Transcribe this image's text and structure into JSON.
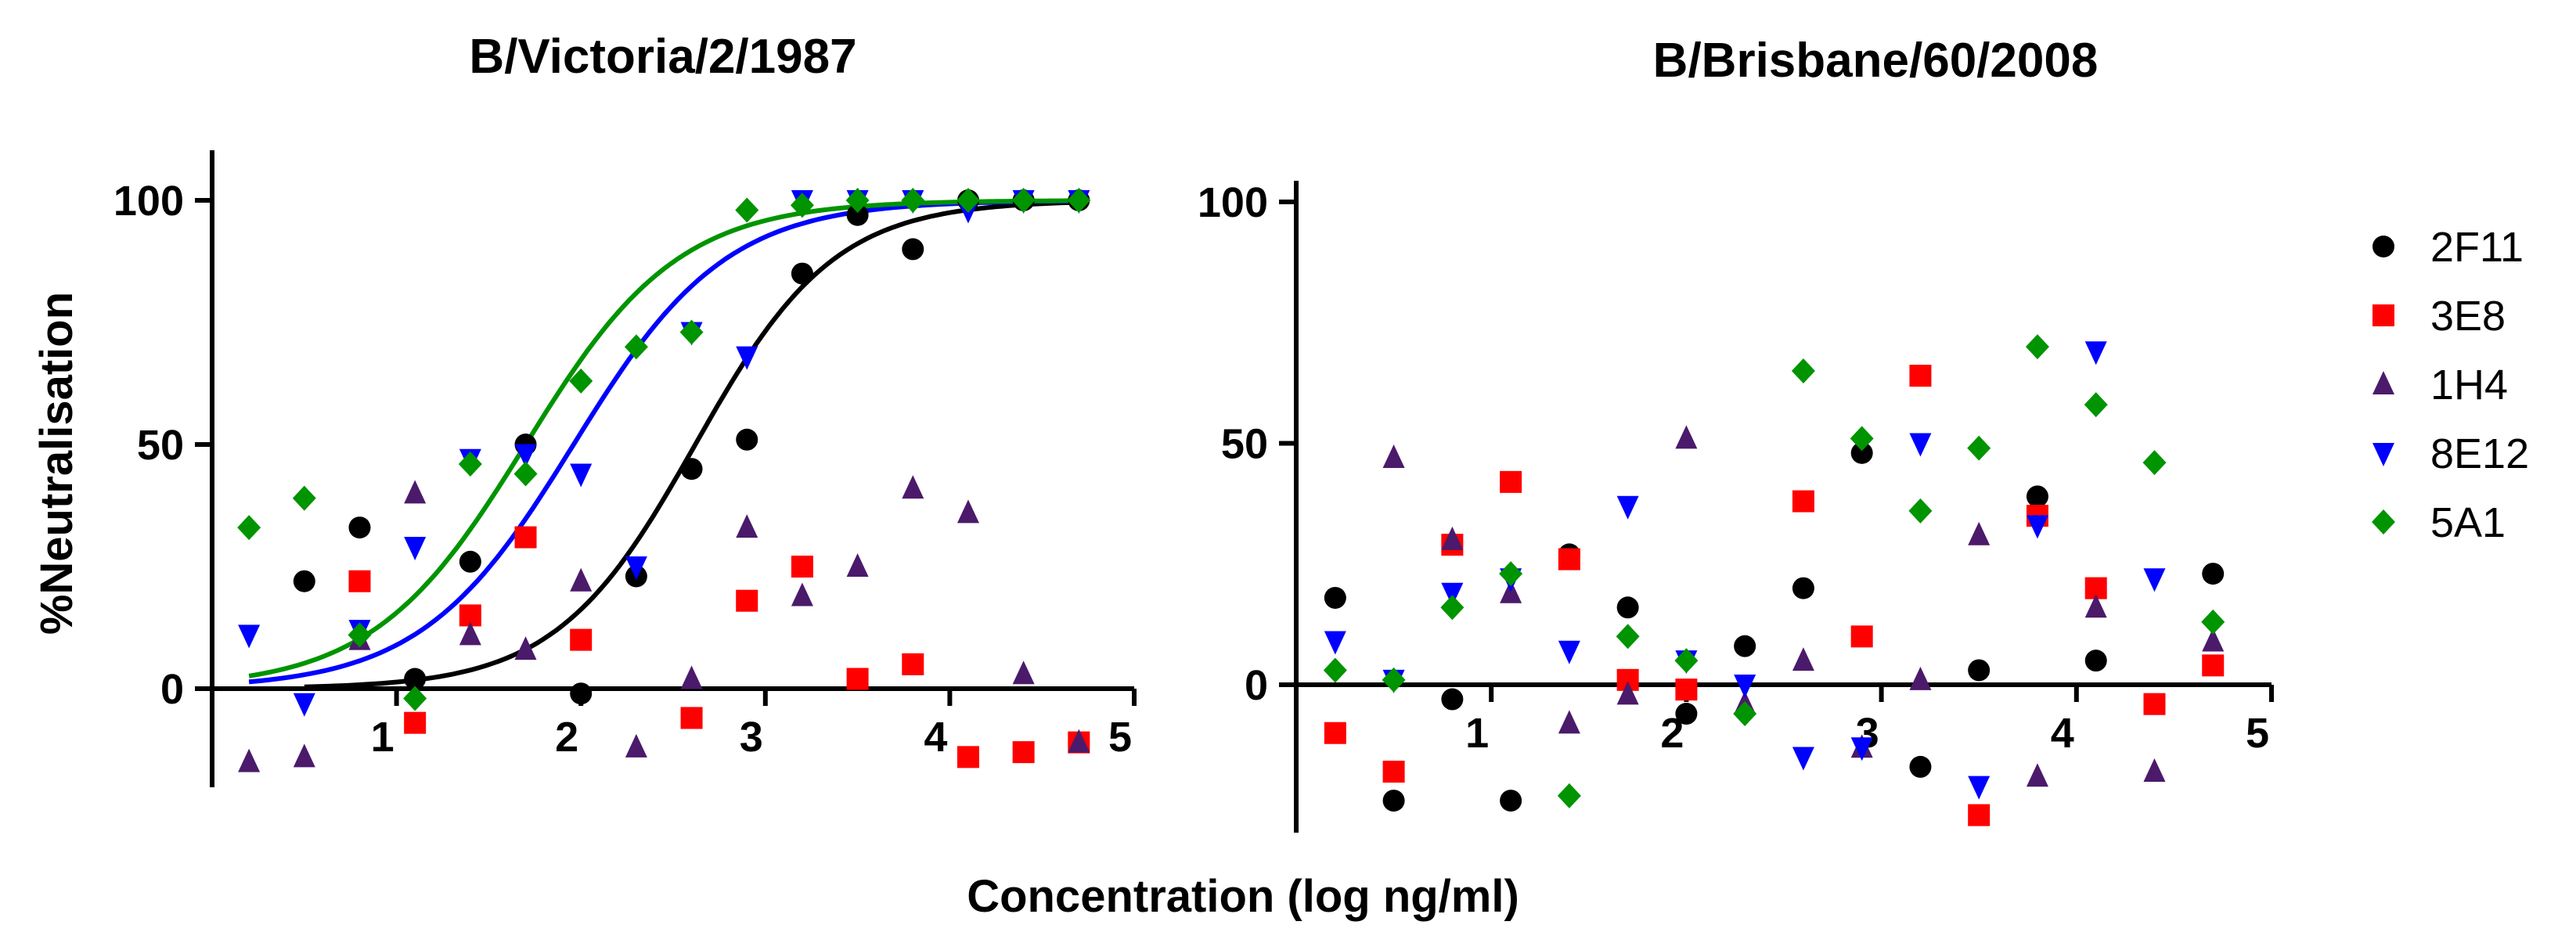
{
  "shared": {
    "xlabel": "Concentration  (log ng/ml)",
    "ylabel": "%Neutralisation"
  },
  "legend": [
    {
      "name": "2F11",
      "color": "#000000",
      "marker": "circle"
    },
    {
      "name": "3E8",
      "color": "#ff0000",
      "marker": "square"
    },
    {
      "name": "1H4",
      "color": "#4b1a6b",
      "marker": "triangle-up"
    },
    {
      "name": "8E12",
      "color": "#0000ff",
      "marker": "triangle-down"
    },
    {
      "name": "5A1",
      "color": "#009400",
      "marker": "diamond"
    }
  ],
  "chart_data": [
    {
      "type": "scatter",
      "title": "B/Victoria/2/1987",
      "xlabel": "Concentration  (log ng/ml)",
      "ylabel": "%Neutralisation",
      "xlim": [
        0,
        5
      ],
      "ylim": [
        -20,
        110
      ],
      "xticks": [
        1,
        2,
        3,
        4,
        5
      ],
      "yticks": [
        0,
        50,
        100
      ],
      "series": [
        {
          "name": "2F11",
          "x": [
            0.5,
            0.8,
            1.1,
            1.4,
            1.7,
            2.0,
            2.3,
            2.6,
            2.9,
            3.2,
            3.5,
            3.8,
            4.1,
            4.4,
            4.7
          ],
          "y": [
            22,
            33,
            2,
            26,
            50,
            -1,
            23,
            45,
            51,
            85,
            97,
            90,
            100,
            100,
            100
          ],
          "fit": {
            "top": 100,
            "bottom": 0,
            "logEC50": 2.62,
            "hill": 1.15
          }
        },
        {
          "name": "3E8",
          "x": [
            0.8,
            1.1,
            1.4,
            1.7,
            2.0,
            2.6,
            2.9,
            3.2,
            3.5,
            3.8,
            4.1,
            4.4,
            4.7
          ],
          "y": [
            22,
            -7,
            15,
            31,
            10,
            -6,
            18,
            25,
            2,
            5,
            -14,
            -13,
            -11
          ]
        },
        {
          "name": "1H4",
          "x": [
            0.2,
            0.5,
            0.8,
            1.1,
            1.4,
            1.7,
            2.0,
            2.3,
            2.6,
            2.9,
            3.2,
            3.5,
            3.8,
            4.1,
            4.4,
            4.7
          ],
          "y": [
            -15,
            -14,
            10,
            40,
            11,
            8,
            22,
            -12,
            2,
            33,
            19,
            25,
            41,
            36,
            3,
            -11
          ]
        },
        {
          "name": "8E12",
          "x": [
            0.2,
            0.5,
            0.8,
            1.1,
            1.4,
            1.7,
            2.0,
            2.3,
            2.6,
            2.9,
            3.2,
            3.5,
            3.8,
            4.1,
            4.4,
            4.7
          ],
          "y": [
            11,
            -3,
            12,
            29,
            47,
            48,
            44,
            25,
            73,
            68,
            100,
            100,
            100,
            98,
            100,
            100
          ],
          "fit": {
            "top": 100,
            "bottom": 0,
            "logEC50": 1.96,
            "hill": 1.05
          }
        },
        {
          "name": "5A1",
          "x": [
            0.2,
            0.5,
            0.8,
            1.1,
            1.4,
            1.7,
            2.0,
            2.3,
            2.6,
            2.9,
            3.2,
            3.5,
            3.8,
            4.1,
            4.4,
            4.7
          ],
          "y": [
            33,
            39,
            11,
            -2,
            46,
            44,
            63,
            70,
            73,
            98,
            99,
            100,
            100,
            100,
            100,
            100
          ],
          "fit": {
            "top": 100,
            "bottom": 0,
            "logEC50": 1.7,
            "hill": 1.05
          }
        }
      ]
    },
    {
      "type": "scatter",
      "title": "B/Brisbane/60/2008",
      "xlabel": "Concentration  (log ng/ml)",
      "ylabel": "%Neutralisation",
      "xlim": [
        0,
        5
      ],
      "ylim": [
        -30,
        110
      ],
      "xticks": [
        1,
        2,
        3,
        4,
        5
      ],
      "yticks": [
        0,
        50,
        100
      ],
      "series": [
        {
          "name": "2F11",
          "x": [
            0.2,
            0.5,
            0.8,
            1.1,
            1.4,
            1.7,
            2.0,
            2.3,
            2.6,
            2.9,
            3.2,
            3.5,
            3.8,
            4.1,
            4.7
          ],
          "y": [
            18,
            -24,
            -3,
            -24,
            27,
            16,
            -6,
            8,
            20,
            48,
            -17,
            3,
            39,
            5,
            23
          ]
        },
        {
          "name": "3E8",
          "x": [
            0.2,
            0.5,
            0.8,
            1.1,
            1.4,
            1.7,
            2.0,
            2.6,
            2.9,
            3.2,
            3.5,
            3.8,
            4.1,
            4.4,
            4.7
          ],
          "y": [
            -10,
            -18,
            29,
            42,
            26,
            1,
            -1,
            38,
            10,
            64,
            -27,
            35,
            20,
            -4,
            4
          ]
        },
        {
          "name": "1H4",
          "x": [
            0.5,
            0.8,
            1.1,
            1.4,
            1.7,
            2.0,
            2.3,
            2.6,
            2.9,
            3.2,
            3.5,
            3.8,
            4.1,
            4.4,
            4.7
          ],
          "y": [
            47,
            30,
            19,
            -8,
            -2,
            51,
            -4,
            5,
            -13,
            1,
            31,
            -19,
            16,
            -18,
            9
          ]
        },
        {
          "name": "8E12",
          "x": [
            0.2,
            0.5,
            0.8,
            1.1,
            1.4,
            1.7,
            2.0,
            2.3,
            2.6,
            2.9,
            3.2,
            3.5,
            3.8,
            4.1,
            4.4
          ],
          "y": [
            9,
            1,
            19,
            22,
            7,
            37,
            5,
            0,
            -15,
            -13,
            50,
            -21,
            33,
            69,
            22
          ]
        },
        {
          "name": "5A1",
          "x": [
            0.2,
            0.5,
            0.8,
            1.1,
            1.4,
            1.7,
            2.0,
            2.3,
            2.6,
            2.9,
            3.2,
            3.5,
            3.8,
            4.1,
            4.4,
            4.7
          ],
          "y": [
            3,
            1,
            16,
            23,
            -23,
            10,
            5,
            -6,
            65,
            51,
            36,
            49,
            70,
            58,
            46,
            13
          ]
        }
      ]
    }
  ]
}
